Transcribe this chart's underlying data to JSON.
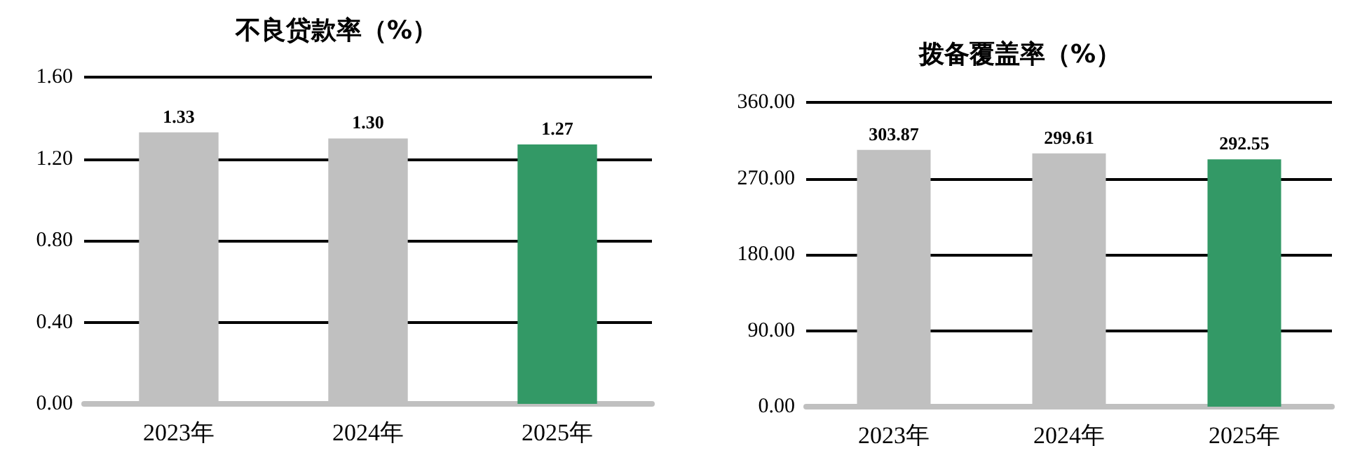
{
  "chart_data": [
    {
      "type": "bar",
      "title": "不良贷款率（%）",
      "categories": [
        "2023年",
        "2024年",
        "2025年"
      ],
      "values": [
        1.33,
        1.3,
        1.27
      ],
      "colors": [
        "#c0c0c0",
        "#c0c0c0",
        "#339966"
      ],
      "value_labels": [
        "1.33",
        "1.30",
        "1.27"
      ],
      "ylim": [
        0,
        1.6
      ],
      "yticks": [
        {
          "value": 0,
          "label": "0.00"
        },
        {
          "value": 0.4,
          "label": "0.40"
        },
        {
          "value": 0.8,
          "label": "0.80"
        },
        {
          "value": 1.2,
          "label": "1.20"
        },
        {
          "value": 1.6,
          "label": "1.60"
        }
      ],
      "grid": "y"
    },
    {
      "type": "bar",
      "title": "拨备覆盖率（%）",
      "categories": [
        "2023年",
        "2024年",
        "2025年"
      ],
      "values": [
        303.87,
        299.61,
        292.55
      ],
      "colors": [
        "#c0c0c0",
        "#c0c0c0",
        "#339966"
      ],
      "value_labels": [
        "303.87",
        "299.61",
        "292.55"
      ],
      "ylim": [
        0,
        360
      ],
      "yticks": [
        {
          "value": 0,
          "label": "0.00"
        },
        {
          "value": 90,
          "label": "90.00"
        },
        {
          "value": 180,
          "label": "180.00"
        },
        {
          "value": 270,
          "label": "270.00"
        },
        {
          "value": 360,
          "label": "360.00"
        }
      ],
      "grid": "y"
    }
  ]
}
